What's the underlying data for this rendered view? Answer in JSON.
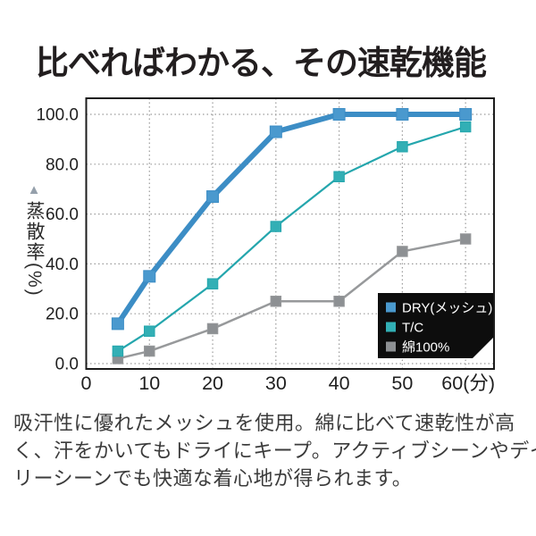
{
  "page": {
    "title": "比べればわかる、その速乾機能",
    "background": "#ffffff"
  },
  "description": {
    "lines": [
      "吸汗性に優れたメッシュを使用。綿に比べて速乾性が高",
      "く、汗をかいてもドライにキープ。アクティブシーンやデイ",
      "リーシーンでも快適な着心地が得られます。"
    ]
  },
  "chart_data": {
    "type": "line",
    "title": "比べればわかる、その速乾機能",
    "x": [
      5,
      10,
      20,
      30,
      40,
      50,
      60
    ],
    "series": [
      {
        "name": "DRY(メッシュ)",
        "color": "#3c8dc5",
        "marker_color": "#4a99ce",
        "line_width": 6,
        "marker_size": 13,
        "values": [
          16,
          35,
          67,
          93,
          100,
          100,
          100
        ]
      },
      {
        "name": "T/C",
        "color": "#24a6ad",
        "marker_color": "#32afb5",
        "line_width": 2.2,
        "marker_size": 11.5,
        "values": [
          5,
          13,
          32,
          55,
          75,
          87,
          95
        ]
      },
      {
        "name": "綿100%",
        "color": "#97999b",
        "marker_color": "#8d9093",
        "line_width": 2.5,
        "marker_size": 11.5,
        "values": [
          2,
          5,
          14,
          25,
          25,
          45,
          50
        ]
      }
    ],
    "x_ticks": [
      0,
      10,
      20,
      30,
      40,
      50,
      60
    ],
    "x_tick_labels": [
      "0",
      "10",
      "20",
      "30",
      "40",
      "50",
      "60(分)"
    ],
    "y_ticks": [
      0,
      20,
      40,
      60,
      80,
      100
    ],
    "y_tick_labels": [
      "0.0",
      "20.0",
      "40.0",
      "60.0",
      "80.0",
      "100.0"
    ],
    "xlabel": "",
    "ylabel": "蒸散率(%)",
    "ylabel_arrow": "▲",
    "xlim": [
      0,
      64.5
    ],
    "ylim": [
      -2.1,
      106.5
    ],
    "grid": "dotted",
    "legend_position": "inside-bottom-right",
    "colors": {
      "frame": "#1c1c1c",
      "grid": "#9b9b9b",
      "tick_text": "#1f1f1f",
      "legend_bg": "#0d0d0d",
      "legend_text": "#ffffff",
      "ylabel_arrow": "#95a0ab"
    }
  }
}
